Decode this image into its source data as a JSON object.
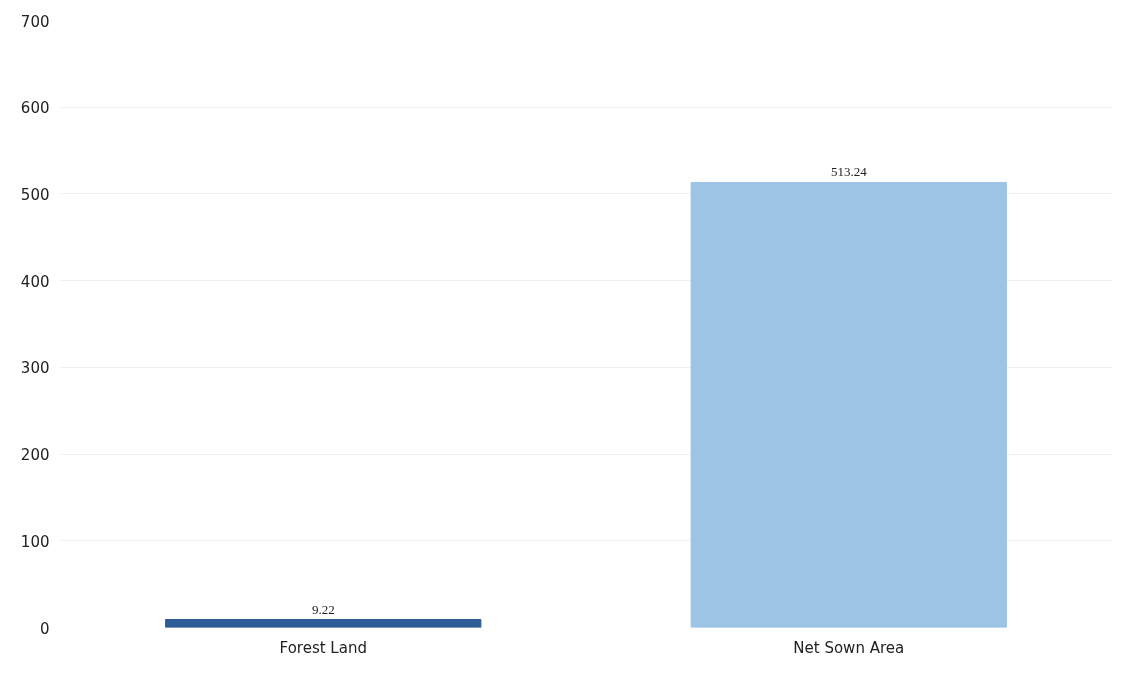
{
  "chart_data": {
    "type": "bar",
    "categories": [
      "Forest Land",
      "Net Sown Area"
    ],
    "values": [
      9.22,
      513.24
    ],
    "colors": [
      "#2e5c96",
      "#9dc3e5"
    ],
    "ylim": [
      0,
      700
    ],
    "yticks": [
      0,
      100,
      200,
      300,
      400,
      500,
      600,
      700
    ],
    "grid": "y",
    "data_labels": true
  }
}
